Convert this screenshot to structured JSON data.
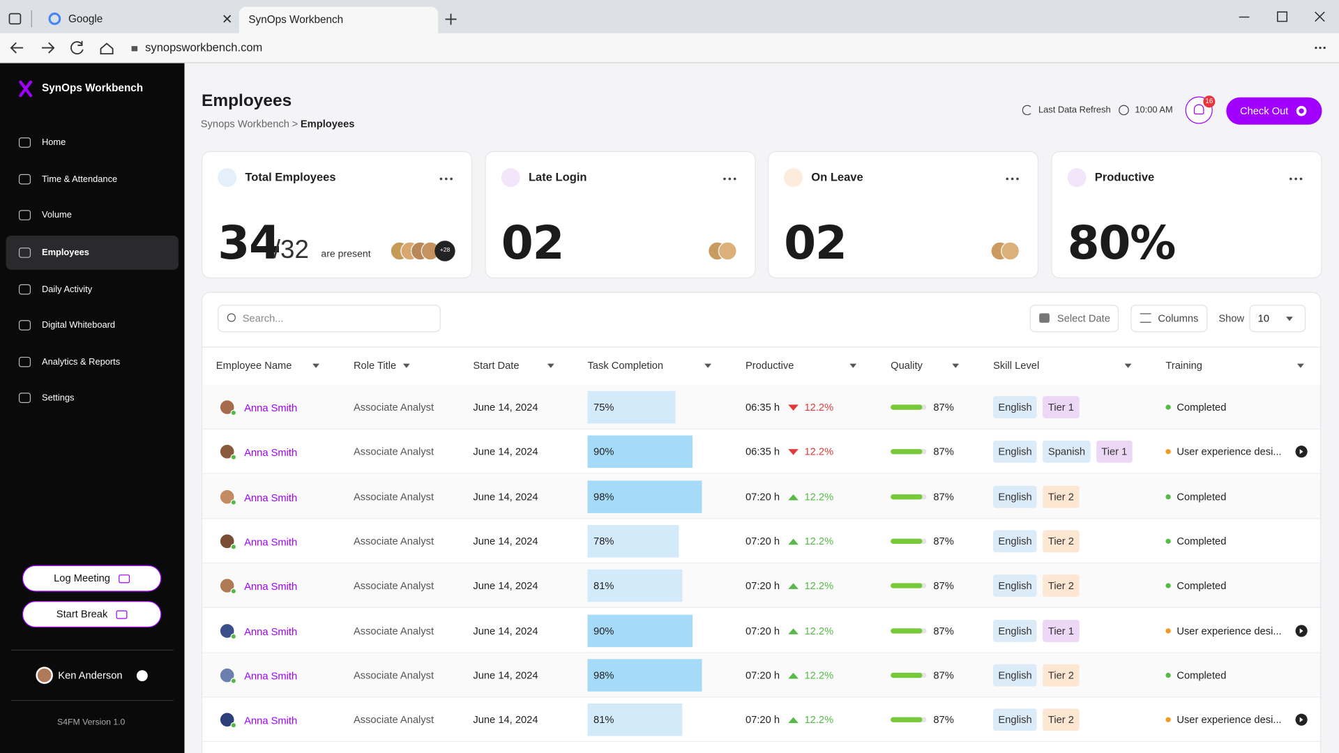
{
  "browser": {
    "tabs": [
      "Google",
      "SynOps Workbench"
    ],
    "url": "synopsworkbench.com"
  },
  "sidebar": {
    "brand": "SynOps Workbench",
    "nav": [
      "Home",
      "Time & Attendance",
      "Volume",
      "Employees",
      "Daily Activity",
      "Digital Whiteboard",
      "Analytics & Reports",
      "Settings"
    ],
    "active": 3,
    "buttons": [
      "Log Meeting",
      "Start Break"
    ],
    "user": "Ken Anderson",
    "version": "S4FM Version 1.0"
  },
  "header": {
    "title": "Employees",
    "breadcrumb": {
      "parent": "Synops Workbench",
      "separator": ">",
      "current": "Employees"
    },
    "refresh_label": "Last Data Refresh",
    "refresh_time": "10:00 AM",
    "notifications": 16,
    "check_out": "Check Out"
  },
  "cards": [
    {
      "title": "Total Employees",
      "value": "34",
      "total": "/32",
      "note": "are present",
      "extra": "+28"
    },
    {
      "title": "Late Login",
      "value": "02"
    },
    {
      "title": "On Leave",
      "value": "02"
    },
    {
      "title": "Productive",
      "value": "80%"
    }
  ],
  "toolbar": {
    "search_placeholder": "Search...",
    "select_date": "Select Date",
    "columns": "Columns",
    "show_label": "Show",
    "show_value": "10"
  },
  "table": {
    "columns": [
      "Employee Name",
      "Role Title",
      "Start Date",
      "Task Completion",
      "Productive",
      "Quality",
      "Skill Level",
      "Training"
    ],
    "rows": [
      {
        "name": "Anna Smith",
        "role": "Associate Analyst",
        "start_date": "June 14, 2024",
        "task": "75%",
        "productive": "06:35 h",
        "change": "12.2%",
        "trend": "down",
        "quality": "87%",
        "skills": [
          {
            "label": "English",
            "color": "#dcebf8"
          },
          {
            "label": "Tier 1",
            "color": "#ecd7f7"
          }
        ],
        "training": "Completed",
        "training_color": "#57b947",
        "expandable": false
      },
      {
        "name": "Anna Smith",
        "role": "Associate Analyst",
        "start_date": "June 14, 2024",
        "task": "90%",
        "productive": "06:35 h",
        "change": "12.2%",
        "trend": "down",
        "quality": "87%",
        "skills": [
          {
            "label": "English",
            "color": "#dcebf8"
          },
          {
            "label": "Spanish",
            "color": "#dcebf8"
          },
          {
            "label": "Tier 1",
            "color": "#ecd7f7"
          }
        ],
        "training": "User experience desi...",
        "training_color": "#f39a1e",
        "expandable": true
      },
      {
        "name": "Anna Smith",
        "role": "Associate Analyst",
        "start_date": "June 14, 2024",
        "task": "98%",
        "productive": "07:20 h",
        "change": "12.2%",
        "trend": "up",
        "quality": "87%",
        "skills": [
          {
            "label": "English",
            "color": "#dcebf8"
          },
          {
            "label": "Tier 2",
            "color": "#fde7d3"
          }
        ],
        "training": "Completed",
        "training_color": "#57b947",
        "expandable": false
      },
      {
        "name": "Anna Smith",
        "role": "Associate Analyst",
        "start_date": "June 14, 2024",
        "task": "78%",
        "productive": "07:20 h",
        "change": "12.2%",
        "trend": "up",
        "quality": "87%",
        "skills": [
          {
            "label": "English",
            "color": "#dcebf8"
          },
          {
            "label": "Tier 2",
            "color": "#fde7d3"
          }
        ],
        "training": "Completed",
        "training_color": "#57b947",
        "expandable": false
      },
      {
        "name": "Anna Smith",
        "role": "Associate Analyst",
        "start_date": "June 14, 2024",
        "task": "81%",
        "productive": "07:20 h",
        "change": "12.2%",
        "trend": "up",
        "quality": "87%",
        "skills": [
          {
            "label": "English",
            "color": "#dcebf8"
          },
          {
            "label": "Tier 2",
            "color": "#fde7d3"
          }
        ],
        "training": "Completed",
        "training_color": "#57b947",
        "expandable": false
      },
      {
        "name": "Anna Smith",
        "role": "Associate Analyst",
        "start_date": "June 14, 2024",
        "task": "90%",
        "productive": "07:20 h",
        "change": "12.2%",
        "trend": "up",
        "quality": "87%",
        "skills": [
          {
            "label": "English",
            "color": "#dcebf8"
          },
          {
            "label": "Tier 1",
            "color": "#ecd7f7"
          }
        ],
        "training": "User experience desi...",
        "training_color": "#f39a1e",
        "expandable": true
      },
      {
        "name": "Anna Smith",
        "role": "Associate Analyst",
        "start_date": "June 14, 2024",
        "task": "98%",
        "productive": "07:20 h",
        "change": "12.2%",
        "trend": "up",
        "quality": "87%",
        "skills": [
          {
            "label": "English",
            "color": "#dcebf8"
          },
          {
            "label": "Tier 2",
            "color": "#fde7d3"
          }
        ],
        "training": "Completed",
        "training_color": "#57b947",
        "expandable": false
      },
      {
        "name": "Anna Smith",
        "role": "Associate Analyst",
        "start_date": "June 14, 2024",
        "task": "81%",
        "productive": "07:20 h",
        "change": "12.2%",
        "trend": "up",
        "quality": "87%",
        "skills": [
          {
            "label": "English",
            "color": "#dcebf8"
          },
          {
            "label": "Tier 2",
            "color": "#fde7d3"
          }
        ],
        "training": "User experience desi...",
        "training_color": "#f39a1e",
        "expandable": true
      }
    ]
  }
}
